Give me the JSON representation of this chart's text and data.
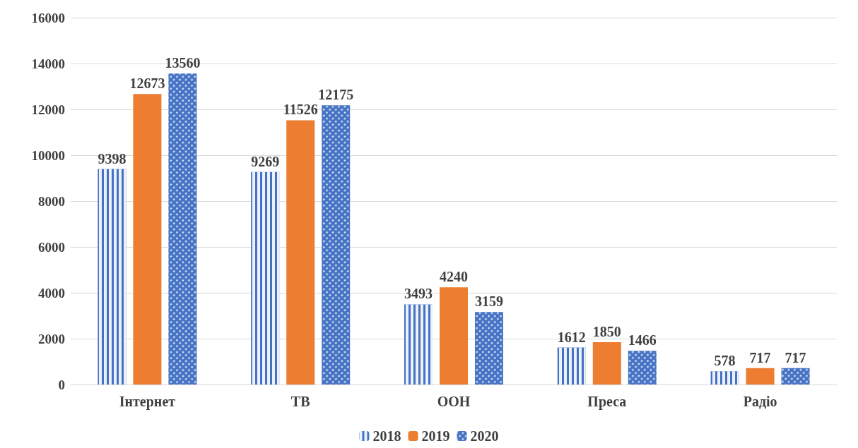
{
  "chart_data": {
    "type": "bar",
    "categories": [
      "Інтернет",
      "ТВ",
      "OOH",
      "Преса",
      "Радіо"
    ],
    "series": [
      {
        "name": "2018",
        "color": "#4472c4",
        "values": [
          9398,
          9269,
          3493,
          1612,
          578
        ]
      },
      {
        "name": "2019",
        "color": "#ed7d31",
        "values": [
          12673,
          11526,
          4240,
          1850,
          717
        ]
      },
      {
        "name": "2020",
        "color": "#4472c4",
        "values": [
          13560,
          12175,
          3159,
          1466,
          717
        ]
      }
    ],
    "ylim": [
      0,
      16000
    ],
    "yticks": [
      0,
      2000,
      4000,
      6000,
      8000,
      10000,
      12000,
      14000,
      16000
    ],
    "grid": "y",
    "legend": "bottom",
    "data_labels": true
  }
}
